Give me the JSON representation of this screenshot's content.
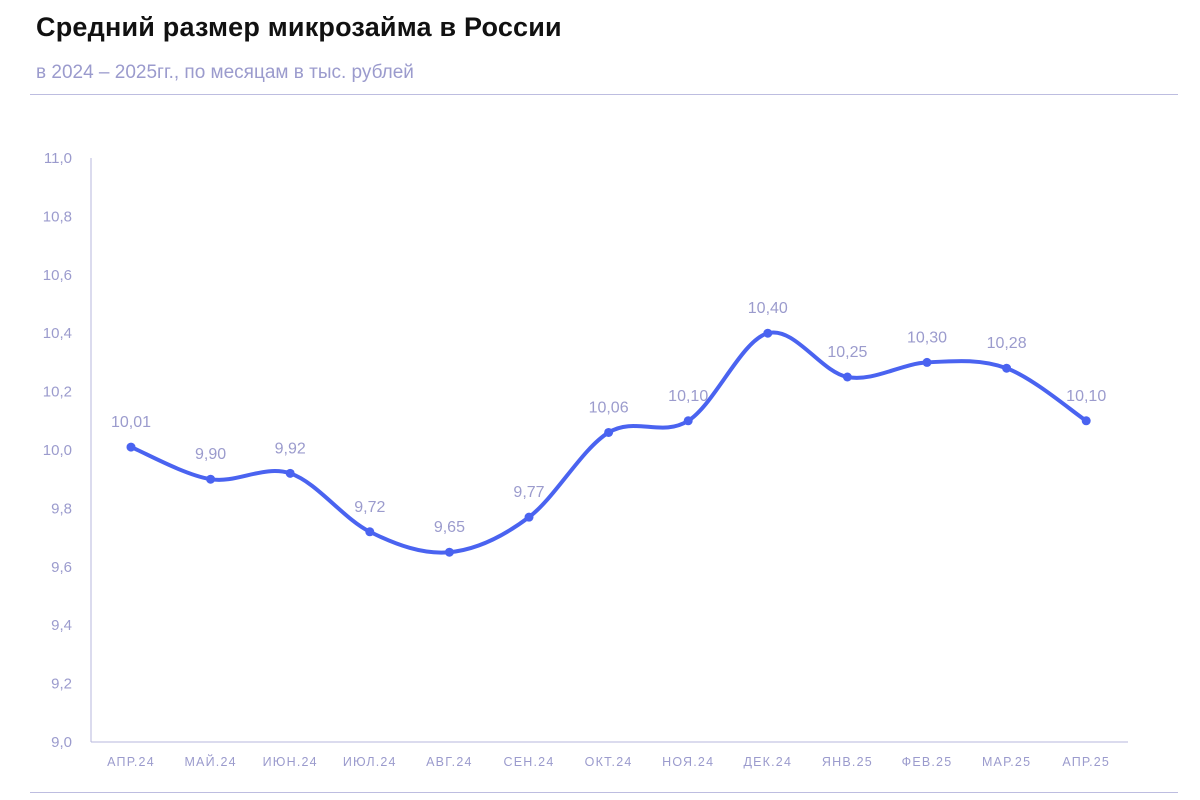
{
  "title": "Средний размер микрозайма в России",
  "subtitle": "в 2024 – 2025гг., по месяцам в тыс. рублей",
  "colors": {
    "line": "#4a63f0",
    "axis": "#b7b7dc",
    "text_muted": "#9b9bcd"
  },
  "chart_data": {
    "type": "line",
    "title": "Средний размер микрозайма в России",
    "subtitle": "в 2024 – 2025гг., по месяцам в тыс. рублей",
    "categories": [
      "АПР.24",
      "МАЙ.24",
      "ИЮН.24",
      "ИЮЛ.24",
      "АВГ.24",
      "СЕН.24",
      "ОКТ.24",
      "НОЯ.24",
      "ДЕК.24",
      "ЯНВ.25",
      "ФЕВ.25",
      "МАР.25",
      "АПР.25"
    ],
    "values": [
      10.01,
      9.9,
      9.92,
      9.72,
      9.65,
      9.77,
      10.06,
      10.1,
      10.4,
      10.25,
      10.3,
      10.28,
      10.1
    ],
    "value_labels": [
      "10,01",
      "9,90",
      "9,92",
      "9,72",
      "9,65",
      "9,77",
      "10,06",
      "10,10",
      "10,40",
      "10,25",
      "10,30",
      "10,28",
      "10,10"
    ],
    "ylim": [
      9.0,
      11.0
    ],
    "yticks": [
      "9,0",
      "9,2",
      "9,4",
      "9,6",
      "9,8",
      "10,0",
      "10,2",
      "10,4",
      "10,6",
      "10,8",
      "11,0"
    ],
    "grid": false,
    "legend": "none",
    "xlabel": "",
    "ylabel": ""
  }
}
